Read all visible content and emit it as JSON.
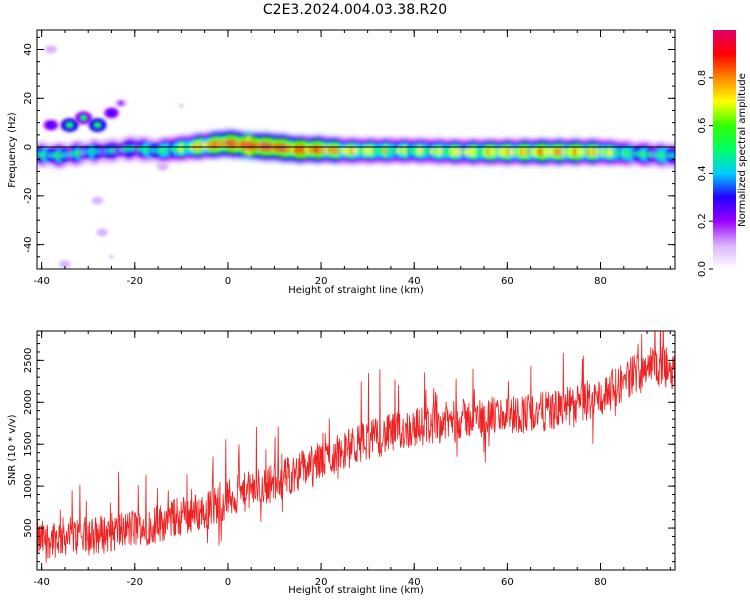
{
  "figure": {
    "title": "C2E3.2024.004.03.38.R20"
  },
  "colors": {
    "snr_line": "#ee2222",
    "axis": "#000000",
    "background": "#ffffff"
  },
  "chart_data": [
    {
      "type": "heatmap",
      "name": "spectrogram",
      "title": "",
      "xlabel": "Height of straight line (km)",
      "ylabel": "Frequency (Hz)",
      "xlim": [
        -41,
        96
      ],
      "ylim": [
        -50,
        48
      ],
      "x_ticks": [
        -40,
        -20,
        0,
        20,
        40,
        60,
        80
      ],
      "y_ticks": [
        -40,
        -20,
        0,
        20,
        40
      ],
      "zero_line": 0,
      "colormap": [
        "#ffffff",
        "#d9b3ff",
        "#9900ff",
        "#2200ff",
        "#00ccff",
        "#00ff66",
        "#33ff00",
        "#ffff00",
        "#ff8800",
        "#ff0000",
        "#e0006a"
      ],
      "colorbar": {
        "label": "Normalized spectral amplitude",
        "range": [
          0,
          1
        ],
        "ticks": [
          "0.0",
          "0.2",
          "0.4",
          "0.6",
          "0.8"
        ]
      },
      "ridge": {
        "x": [
          -41,
          -36,
          -30,
          -25,
          -20,
          -15,
          -10,
          -5,
          0,
          5,
          10,
          15,
          20,
          25,
          30,
          40,
          50,
          60,
          70,
          80,
          85,
          90,
          96
        ],
        "freq": [
          -3,
          -3.5,
          -2,
          -1.5,
          -0.5,
          -1.5,
          -0.5,
          0.5,
          1.5,
          0.5,
          0,
          -1,
          -1,
          -1.5,
          -1.5,
          -1.5,
          -2,
          -2,
          -2,
          -2,
          -2.5,
          -3,
          -3.5
        ],
        "amplitude": [
          0.45,
          0.5,
          0.45,
          0.4,
          0.45,
          0.5,
          0.6,
          0.75,
          0.85,
          0.9,
          0.9,
          0.85,
          0.8,
          0.7,
          0.65,
          0.6,
          0.65,
          0.7,
          0.75,
          0.7,
          0.55,
          0.5,
          0.5
        ]
      },
      "blobs": [
        {
          "x": -34,
          "freq": 9,
          "amplitude": 0.5
        },
        {
          "x": -31,
          "freq": 12,
          "amplitude": 0.45
        },
        {
          "x": -28,
          "freq": 9,
          "amplitude": 0.5
        },
        {
          "x": -38,
          "freq": 9,
          "amplitude": 0.3
        },
        {
          "x": -25,
          "freq": 14,
          "amplitude": 0.3
        },
        {
          "x": -23,
          "freq": 18,
          "amplitude": 0.15
        },
        {
          "x": -38,
          "freq": 40,
          "amplitude": 0.12
        },
        {
          "x": -28,
          "freq": -22,
          "amplitude": 0.1
        },
        {
          "x": -27,
          "freq": -35,
          "amplitude": 0.1
        },
        {
          "x": -35,
          "freq": -48,
          "amplitude": 0.1
        },
        {
          "x": -25,
          "freq": -45,
          "amplitude": 0.08
        },
        {
          "x": -14,
          "freq": -8,
          "amplitude": 0.12
        },
        {
          "x": -10,
          "freq": 17,
          "amplitude": 0.08
        }
      ]
    },
    {
      "type": "line",
      "name": "snr",
      "title": "",
      "xlabel": "Height of straight line (km)",
      "ylabel": "SNR (10 * v/v)",
      "xlim": [
        -41,
        96
      ],
      "ylim": [
        0,
        2850
      ],
      "x_ticks": [
        -40,
        -20,
        0,
        20,
        40,
        60,
        80
      ],
      "y_ticks": [
        500,
        1000,
        1500,
        2000,
        2500
      ],
      "trend": {
        "x": [
          -41,
          -35,
          -30,
          -25,
          -20,
          -15,
          -10,
          -5,
          0,
          10,
          20,
          30,
          40,
          50,
          60,
          70,
          80,
          85,
          90,
          96
        ],
        "y": [
          350,
          400,
          400,
          450,
          500,
          550,
          650,
          700,
          850,
          1050,
          1300,
          1550,
          1700,
          1800,
          1850,
          1900,
          2050,
          2250,
          2450,
          2400
        ]
      },
      "noise_amplitude": 300,
      "points": 1400
    }
  ]
}
